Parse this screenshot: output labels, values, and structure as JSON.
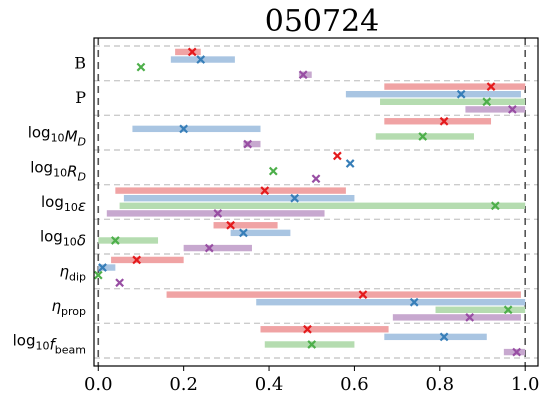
{
  "chart_data": {
    "type": "interval",
    "title": "050724",
    "xlim": [
      -0.01,
      1.03
    ],
    "xticks": [
      "0.0",
      "0.2",
      "0.4",
      "0.6",
      "0.8",
      "1.0"
    ],
    "xtick_values": [
      0.0,
      0.2,
      0.4,
      0.6,
      0.8,
      1.0
    ],
    "reference_lines": [
      0.0,
      1.0
    ],
    "grid": "horizontal dashed separators between parameters",
    "series_colors": [
      "#e41a1c",
      "#377eb8",
      "#4daf4a",
      "#984ea3"
    ],
    "parameters": [
      {
        "label": "B",
        "rows": [
          {
            "series": 0,
            "lo": 0.18,
            "hi": 0.24,
            "mark": 0.22
          },
          {
            "series": 1,
            "lo": 0.17,
            "hi": 0.32,
            "mark": 0.24
          },
          {
            "series": 2,
            "lo": null,
            "hi": null,
            "mark": 0.1
          },
          {
            "series": 3,
            "lo": 0.47,
            "hi": 0.5,
            "mark": 0.48
          }
        ]
      },
      {
        "label": "P",
        "rows": [
          {
            "series": 0,
            "lo": 0.67,
            "hi": 1.0,
            "mark": 0.92
          },
          {
            "series": 1,
            "lo": 0.58,
            "hi": 0.99,
            "mark": 0.85
          },
          {
            "series": 2,
            "lo": 0.66,
            "hi": 1.0,
            "mark": 0.91
          },
          {
            "series": 3,
            "lo": 0.86,
            "hi": 1.0,
            "mark": 0.97
          }
        ]
      },
      {
        "label": "log10MD",
        "rows": [
          {
            "series": 0,
            "lo": 0.67,
            "hi": 0.92,
            "mark": 0.81
          },
          {
            "series": 1,
            "lo": 0.08,
            "hi": 0.38,
            "mark": 0.2
          },
          {
            "series": 2,
            "lo": 0.65,
            "hi": 0.88,
            "mark": 0.76
          },
          {
            "series": 3,
            "lo": 0.34,
            "hi": 0.38,
            "mark": 0.35
          }
        ]
      },
      {
        "label": "log10RD",
        "rows": [
          {
            "series": 0,
            "lo": null,
            "hi": null,
            "mark": 0.56
          },
          {
            "series": 1,
            "lo": null,
            "hi": null,
            "mark": 0.59
          },
          {
            "series": 2,
            "lo": null,
            "hi": null,
            "mark": 0.41
          },
          {
            "series": 3,
            "lo": null,
            "hi": null,
            "mark": 0.51
          }
        ]
      },
      {
        "label": "log10eps",
        "rows": [
          {
            "series": 0,
            "lo": 0.04,
            "hi": 0.58,
            "mark": 0.39
          },
          {
            "series": 1,
            "lo": 0.06,
            "hi": 0.6,
            "mark": 0.46
          },
          {
            "series": 2,
            "lo": 0.05,
            "hi": 1.0,
            "mark": 0.93
          },
          {
            "series": 3,
            "lo": 0.02,
            "hi": 0.53,
            "mark": 0.28
          }
        ]
      },
      {
        "label": "log10delta",
        "rows": [
          {
            "series": 0,
            "lo": 0.27,
            "hi": 0.42,
            "mark": 0.31
          },
          {
            "series": 1,
            "lo": 0.31,
            "hi": 0.45,
            "mark": 0.34
          },
          {
            "series": 2,
            "lo": 0.0,
            "hi": 0.14,
            "mark": 0.04
          },
          {
            "series": 3,
            "lo": 0.2,
            "hi": 0.36,
            "mark": 0.26
          }
        ]
      },
      {
        "label": "eta_dip",
        "rows": [
          {
            "series": 0,
            "lo": 0.03,
            "hi": 0.2,
            "mark": 0.09
          },
          {
            "series": 1,
            "lo": 0.0,
            "hi": 0.04,
            "mark": 0.01
          },
          {
            "series": 2,
            "lo": null,
            "hi": null,
            "mark": 0.0
          },
          {
            "series": 3,
            "lo": null,
            "hi": null,
            "mark": 0.05
          }
        ]
      },
      {
        "label": "eta_prop",
        "rows": [
          {
            "series": 0,
            "lo": 0.16,
            "hi": 0.99,
            "mark": 0.62
          },
          {
            "series": 1,
            "lo": 0.37,
            "hi": 1.0,
            "mark": 0.74
          },
          {
            "series": 2,
            "lo": 0.79,
            "hi": 1.0,
            "mark": 0.96
          },
          {
            "series": 3,
            "lo": 0.69,
            "hi": 0.99,
            "mark": 0.87
          }
        ]
      },
      {
        "label": "log10fbeam",
        "rows": [
          {
            "series": 0,
            "lo": 0.38,
            "hi": 0.68,
            "mark": 0.49
          },
          {
            "series": 1,
            "lo": 0.67,
            "hi": 0.91,
            "mark": 0.81
          },
          {
            "series": 2,
            "lo": 0.39,
            "hi": 0.6,
            "mark": 0.5
          },
          {
            "series": 3,
            "lo": 0.95,
            "hi": 1.0,
            "mark": 0.98
          }
        ]
      }
    ]
  }
}
